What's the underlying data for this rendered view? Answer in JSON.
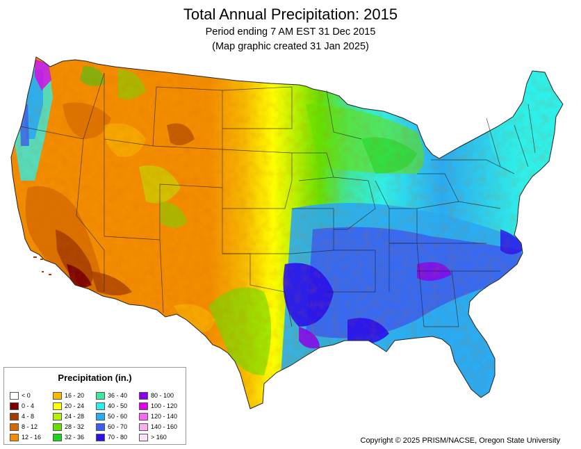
{
  "map": {
    "title": "Total Annual Precipitation: 2015",
    "subtitle_1": "Period ending 7 AM EST 31 Dec 2015",
    "subtitle_2": "(Map graphic created 31 Jan 2025)",
    "copyright": "Copyright © 2025 PRISM/NACSE, Oregon State University"
  },
  "legend": {
    "title": "Precipitation (in.)",
    "items": [
      {
        "label": "< 0",
        "color": "#ffffff"
      },
      {
        "label": "0 - 4",
        "color": "#7a0000"
      },
      {
        "label": "4 - 8",
        "color": "#a33c00"
      },
      {
        "label": "8 - 12",
        "color": "#d46a00"
      },
      {
        "label": "12 - 16",
        "color": "#f28c00"
      },
      {
        "label": "16 - 20",
        "color": "#f6b800"
      },
      {
        "label": "20 - 24",
        "color": "#ffff00"
      },
      {
        "label": "24 - 28",
        "color": "#b6f000"
      },
      {
        "label": "28 - 32",
        "color": "#66e000"
      },
      {
        "label": "32 - 36",
        "color": "#1cd41c"
      },
      {
        "label": "36 - 40",
        "color": "#3ee6a0"
      },
      {
        "label": "40 - 50",
        "color": "#2ef0ea"
      },
      {
        "label": "50 - 60",
        "color": "#2aaaf2"
      },
      {
        "label": "60 - 70",
        "color": "#3a5ef0"
      },
      {
        "label": "70 - 80",
        "color": "#2a10ea"
      },
      {
        "label": "80 - 100",
        "color": "#8a00ea"
      },
      {
        "label": "100 - 120",
        "color": "#e000ea"
      },
      {
        "label": "120 - 140",
        "color": "#f56af0"
      },
      {
        "label": "140 - 160",
        "color": "#f6b0f0"
      },
      {
        "label": "> 160",
        "color": "#fde0fa"
      }
    ]
  }
}
